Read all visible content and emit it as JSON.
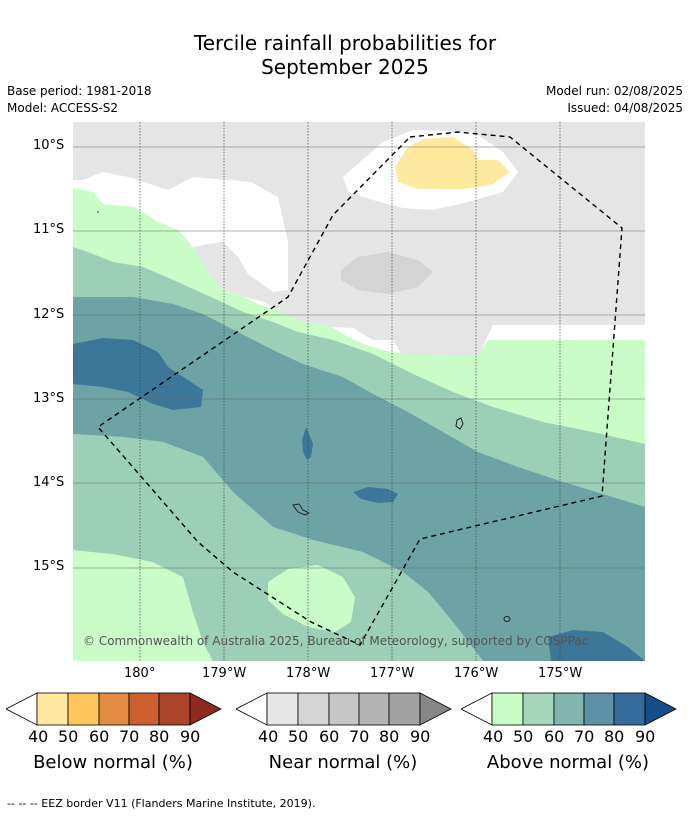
{
  "title": {
    "line1": "Tercile rainfall probabilities for",
    "line2": "September 2025"
  },
  "meta": {
    "base_period": "Base period: 1981-2018",
    "model": "Model: ACCESS-S2",
    "model_run": "Model run: 02/08/2025",
    "issued": "Issued: 04/08/2025"
  },
  "map": {
    "lat_labels": [
      "10°S",
      "11°S",
      "12°S",
      "13°S",
      "14°S",
      "15°S"
    ],
    "lon_labels": [
      "180°",
      "179°W",
      "178°W",
      "177°W",
      "176°W",
      "175°W"
    ],
    "copyright": "© Commonwealth of Australia 2025, Bureau of Meteorology, supported by COSPPac",
    "colors": {
      "near_normal_40": "#e5e5e5",
      "below_normal_40": "#fdea9e",
      "above_normal_40": "#c9fcc7",
      "above_normal_50": "#9bcfb7",
      "above_normal_60": "#6ea3a6",
      "above_normal_70": "#3c7799",
      "near_normal_50": "#d4d4d4"
    }
  },
  "colorbars": [
    {
      "label": "Below normal (%)",
      "ticks": [
        "40",
        "50",
        "60",
        "70",
        "80",
        "90"
      ],
      "colors": [
        "#ffffff",
        "#fee99f",
        "#fec65d",
        "#e28b42",
        "#cc5f2e",
        "#a9432a",
        "#8f2a20"
      ]
    },
    {
      "label": "Near normal (%)",
      "ticks": [
        "40",
        "50",
        "60",
        "70",
        "80",
        "90"
      ],
      "colors": [
        "#ffffff",
        "#e6e6e6",
        "#d5d5d5",
        "#c6c6c6",
        "#b3b3b3",
        "#a2a2a2",
        "#878787"
      ]
    },
    {
      "label": "Above normal (%)",
      "ticks": [
        "40",
        "50",
        "60",
        "70",
        "80",
        "90"
      ],
      "colors": [
        "#ffffff",
        "#c9fcc7",
        "#a5d8bb",
        "#82b5ae",
        "#5d91a5",
        "#356a9c",
        "#154c89"
      ]
    }
  ],
  "footnote": "-- -- -- EEZ border V11 (Flanders Marine Institute, 2019)."
}
